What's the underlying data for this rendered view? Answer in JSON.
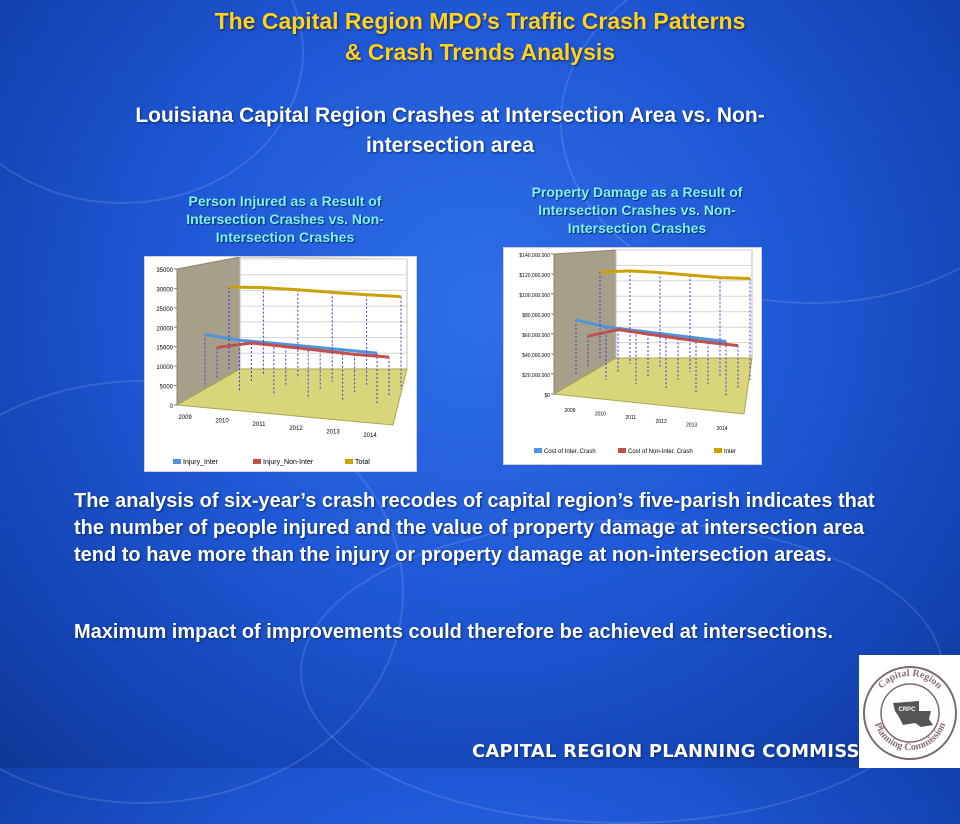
{
  "slide": {
    "title_line1": "The Capital Region MPO’s Traffic Crash Patterns",
    "title_line2": "& Crash Trends Analysis",
    "subtitle_line1": "Louisiana Capital Region Crashes at Intersection Area vs. Non-",
    "subtitle_line2": "intersection area",
    "paragraph1": "The analysis of six-year’s crash recodes of capital region’s five-parish indicates that the number of people injured and the value of property damage at intersection area tend to have more than the injury or property damage at non-intersection areas.",
    "paragraph2": "Maximum impact of improvements could therefore be achieved at intersections.",
    "footer": "CAPITAL REGION PLANNING COMMISSION",
    "logo_text_top": "Capital Region",
    "logo_text_bottom": "Planning Commission",
    "logo_initials": "CRPC"
  },
  "colors": {
    "title": "#ffd21f",
    "chart_title": "#7df2f2",
    "series_inter": "#4f94dc",
    "series_noninter": "#c0504d",
    "series_total": "#c9a200"
  },
  "chart_data": [
    {
      "type": "line",
      "title_lines": [
        "Person Injured as a Result of",
        "Intersection Crashes vs. Non-",
        "Intersection Crashes"
      ],
      "categories": [
        "2009",
        "2010",
        "2011",
        "2012",
        "2013",
        "2014"
      ],
      "y_ticks": [
        "0",
        "5000",
        "10000",
        "15000",
        "20000",
        "25000",
        "30000",
        "35000"
      ],
      "ylim": [
        0,
        35000
      ],
      "series": [
        {
          "name": "Injury_Inter",
          "values": [
            17500,
            16800,
            17000,
            17100,
            17200,
            17300
          ]
        },
        {
          "name": "Injury_Non-Inter",
          "values": [
            10500,
            13200,
            13200,
            13100,
            13000,
            13300
          ]
        },
        {
          "name": "Total",
          "values": [
            28000,
            29000,
            29500,
            29800,
            30200,
            30800
          ]
        }
      ],
      "legend_position": "bottom",
      "three_d": true
    },
    {
      "type": "line",
      "title_lines": [
        "Property Damage as a Result of",
        "Intersection Crashes vs. Non-",
        "Intersection Crashes"
      ],
      "categories": [
        "2009",
        "2010",
        "2011",
        "2012",
        "2013",
        "2014"
      ],
      "y_ticks": [
        "$0",
        "$20,000,000",
        "$40,000,000",
        "$60,000,000",
        "$80,000,000",
        "$100,000,000",
        "$120,000,000",
        "$140,000,000"
      ],
      "ylim": [
        0,
        140000000
      ],
      "series": [
        {
          "name": "Cost of Inter. Crash",
          "values": [
            74000000,
            70000000,
            70500000,
            71000000,
            71500000,
            72000000
          ]
        },
        {
          "name": "Cost of Non-Inter. Crash",
          "values": [
            42000000,
            56000000,
            55500000,
            55000000,
            55000000,
            56000000
          ]
        },
        {
          "name": "Inter",
          "values": [
            116000000,
            123000000,
            126000000,
            128000000,
            130000000,
            134000000
          ]
        }
      ],
      "legend_position": "bottom",
      "three_d": true
    }
  ]
}
